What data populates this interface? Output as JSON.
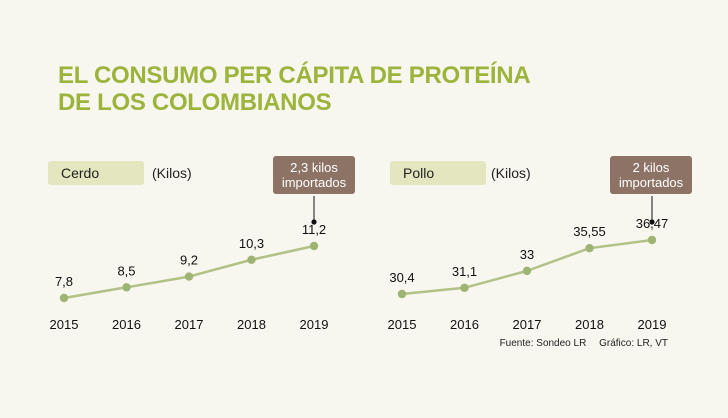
{
  "title": {
    "line1": "EL CONSUMO PER CÁPITA DE PROTEÍNA",
    "line2": "DE LOS COLOMBIANOS"
  },
  "colors": {
    "title": "#9db43c",
    "line": "#b2c185",
    "point": "#9fb373",
    "pill": "#e3e6bf",
    "callout": "#8c7366"
  },
  "chart_data": [
    {
      "type": "line",
      "series_label": "Cerdo",
      "unit": "(Kilos)",
      "categories": [
        "2015",
        "2016",
        "2017",
        "2018",
        "2019"
      ],
      "values": [
        7.8,
        8.5,
        9.2,
        10.3,
        11.2
      ],
      "value_labels": [
        "7,8",
        "8,5",
        "9,2",
        "10,3",
        "11,2"
      ],
      "callout": {
        "line1": "2,3 kilos",
        "line2": "importados",
        "index": 4
      }
    },
    {
      "type": "line",
      "series_label": "Pollo",
      "unit": "(Kilos)",
      "categories": [
        "2015",
        "2016",
        "2017",
        "2018",
        "2019"
      ],
      "values": [
        30.4,
        31.1,
        33,
        35.55,
        36.47
      ],
      "value_labels": [
        "30,4",
        "31,1",
        "33",
        "35,55",
        "36,47"
      ],
      "callout": {
        "line1": "2 kilos",
        "line2": "importados",
        "index": 4
      }
    }
  ],
  "source": {
    "fuente": "Fuente: Sondeo LR",
    "grafico": "Gráfico: LR, VT"
  }
}
